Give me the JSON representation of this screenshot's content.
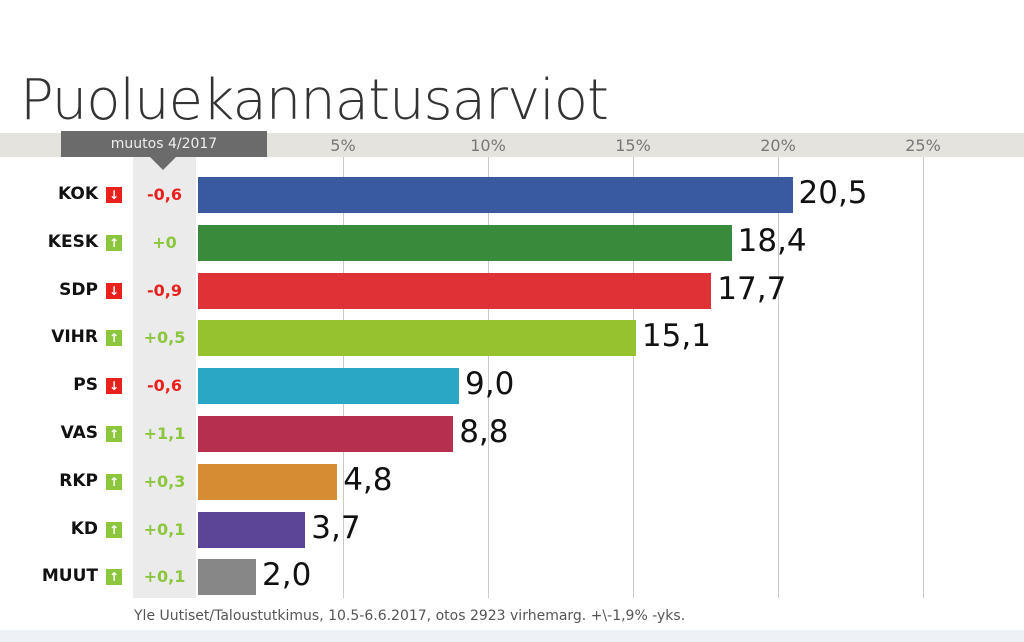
{
  "title": "Puoluekannatusarviot",
  "change_label": "muutos 4/2017",
  "source": "Yle Uutiset/Taloustutkimus, 10.5-6.6.2017, otos 2923 virhemarg. +\\-1,9% -yks.",
  "chart_data": {
    "type": "bar",
    "title": "Puoluekannatusarviot",
    "xlim": [
      0,
      25
    ],
    "ticks": [
      5,
      10,
      15,
      20,
      25
    ],
    "tick_labels": [
      "5%",
      "10%",
      "15%",
      "20%",
      "25%"
    ],
    "categories": [
      "KOK",
      "KESK",
      "SDP",
      "VIHR",
      "PS",
      "VAS",
      "RKP",
      "KD",
      "MUUT"
    ],
    "values": [
      20.5,
      18.4,
      17.7,
      15.1,
      9.0,
      8.8,
      4.8,
      3.7,
      2.0
    ],
    "value_labels": [
      "20,5",
      "18,4",
      "17,7",
      "15,1",
      "9,0",
      "8,8",
      "4,8",
      "3,7",
      "2,0"
    ],
    "changes": [
      "-0,6",
      "+0",
      "-0,9",
      "+0,5",
      "-0,6",
      "+1,1",
      "+0,3",
      "+0,1",
      "+0,1"
    ],
    "directions": [
      "down",
      "up",
      "down",
      "up",
      "down",
      "up",
      "up",
      "up",
      "up"
    ],
    "colors": [
      "#3a5aa0",
      "#3a8a3c",
      "#e03236",
      "#96c22f",
      "#2aa7c4",
      "#b62f4f",
      "#d68c32",
      "#5a4597",
      "#878787"
    ],
    "up_color": "#8cc63e",
    "down_color": "#e8211d"
  }
}
